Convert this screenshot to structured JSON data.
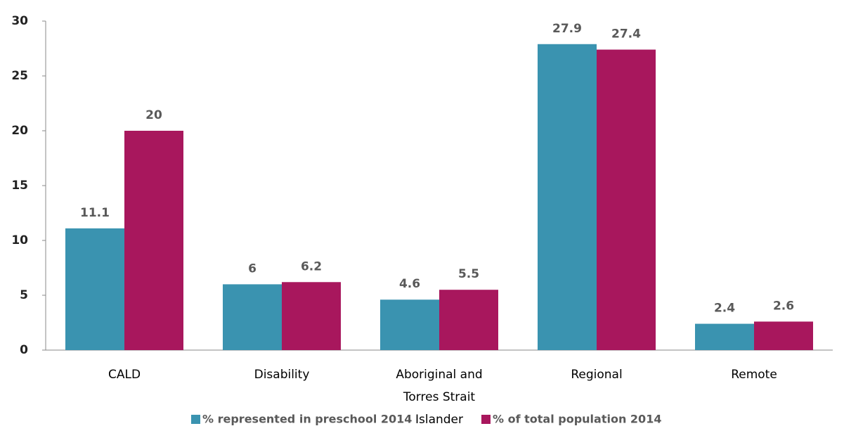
{
  "chart_data": {
    "type": "bar",
    "categories": [
      "CALD",
      "Disability",
      "Aboriginal and Torres Strait Islander",
      "Regional",
      "Remote"
    ],
    "series": [
      {
        "name": "% represented in preschool 2014",
        "color": "#3a93b0",
        "values": [
          11.1,
          6,
          4.6,
          27.9,
          2.4
        ]
      },
      {
        "name": "% of total population 2014",
        "color": "#a8175d",
        "values": [
          20,
          6.2,
          5.5,
          27.4,
          2.6
        ]
      }
    ],
    "ylim": [
      0,
      30
    ],
    "yticks": [
      0,
      5,
      10,
      15,
      20,
      25,
      30
    ],
    "grid": false,
    "legend": "bottom"
  }
}
